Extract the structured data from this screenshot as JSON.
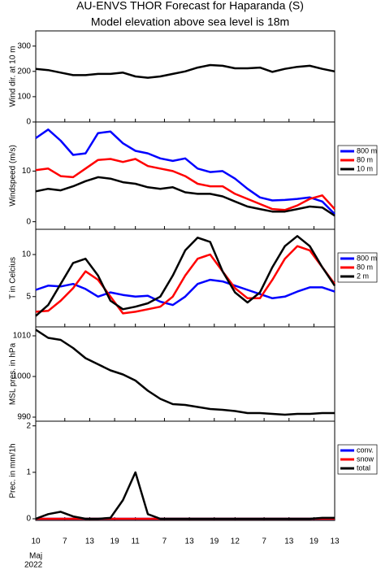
{
  "title": "AU-ENVS THOR Forecast for Haparanda (S)",
  "subtitle": "Model elevation above sea level is   18m",
  "chart_data": [
    {
      "type": "line",
      "ylabel": "Wind dir. at 10 m",
      "ylim": [
        0,
        360
      ],
      "yticks": [
        0,
        100,
        200,
        300
      ],
      "xlim": [
        0,
        72
      ],
      "x": [
        0,
        3,
        6,
        9,
        12,
        15,
        18,
        21,
        24,
        27,
        30,
        33,
        36,
        39,
        42,
        45,
        48,
        51,
        54,
        57,
        60,
        63,
        66,
        69,
        72
      ],
      "series": [
        {
          "color": "#000000",
          "values": [
            210,
            205,
            195,
            185,
            185,
            190,
            190,
            195,
            180,
            175,
            180,
            190,
            200,
            215,
            225,
            222,
            212,
            212,
            215,
            198,
            210,
            218,
            222,
            210,
            200
          ]
        }
      ]
    },
    {
      "type": "line",
      "ylabel": "Windspeed (m/s)",
      "ylim": [
        -1.5,
        19.7
      ],
      "yticks": [
        0,
        10
      ],
      "xlim": [
        0,
        72
      ],
      "legend": "right",
      "x": [
        0,
        3,
        6,
        9,
        12,
        15,
        18,
        21,
        24,
        27,
        30,
        33,
        36,
        39,
        42,
        45,
        48,
        51,
        54,
        57,
        60,
        63,
        66,
        69,
        72
      ],
      "series": [
        {
          "name": "800 m",
          "color": "#0000ff",
          "values": [
            16.5,
            18.2,
            16,
            13.2,
            13.5,
            17.5,
            17.8,
            15.5,
            14,
            13.5,
            12.5,
            12,
            12.5,
            10.5,
            9.8,
            10,
            8.5,
            6.5,
            4.8,
            4.2,
            4.3,
            4.5,
            4.8,
            4,
            1.5
          ]
        },
        {
          "name": "80 m",
          "color": "#ff0000",
          "values": [
            10.2,
            10.5,
            9,
            8.8,
            10.5,
            12.2,
            12.4,
            11.8,
            12.4,
            11,
            10.5,
            10,
            9,
            7.5,
            7,
            7,
            5.5,
            4.5,
            3.5,
            2.5,
            2.3,
            3.2,
            4.5,
            5.2,
            2.5
          ]
        },
        {
          "name": "10 m",
          "color": "#000000",
          "values": [
            6,
            6.5,
            6.2,
            7,
            8,
            8.8,
            8.5,
            7.8,
            7.5,
            6.8,
            6.5,
            6.8,
            5.8,
            5.5,
            5.5,
            5,
            4,
            3,
            2.5,
            2,
            2,
            2.5,
            3,
            2.8,
            1.2
          ]
        }
      ]
    },
    {
      "type": "line",
      "ylabel": "T in Celcius",
      "ylim": [
        1.4,
        13
      ],
      "yticks": [
        5,
        10
      ],
      "xlim": [
        0,
        72
      ],
      "legend": "right",
      "x": [
        0,
        3,
        6,
        9,
        12,
        15,
        18,
        21,
        24,
        27,
        30,
        33,
        36,
        39,
        42,
        45,
        48,
        51,
        54,
        57,
        60,
        63,
        66,
        69,
        72
      ],
      "series": [
        {
          "name": "800 m",
          "color": "#0000ff",
          "values": [
            5.8,
            6.3,
            6.2,
            6.5,
            5.9,
            5,
            5.5,
            5.2,
            5,
            5.1,
            4.4,
            4,
            5,
            6.5,
            7,
            6.8,
            6.3,
            5.8,
            5.3,
            4.8,
            5,
            5.6,
            6.1,
            6.1,
            5.6
          ]
        },
        {
          "name": "80 m",
          "color": "#ff0000",
          "values": [
            3.2,
            3.3,
            4.5,
            6,
            8,
            7,
            5,
            3,
            3.2,
            3.5,
            3.8,
            5,
            7.5,
            9.5,
            10,
            8,
            6,
            4.8,
            4.8,
            7,
            9.5,
            11,
            10.5,
            8.5,
            6.5
          ]
        },
        {
          "name": "2 m",
          "color": "#000000",
          "values": [
            2.7,
            4,
            6.5,
            9,
            9.5,
            7.5,
            4.5,
            3.5,
            3.8,
            4.2,
            5,
            7.5,
            10.5,
            12,
            11.5,
            8,
            5.5,
            4.3,
            5.5,
            8.5,
            11,
            12.2,
            11,
            8.5,
            6.3
          ]
        }
      ]
    },
    {
      "type": "line",
      "ylabel": "MSL pres. in hPa",
      "ylim": [
        989,
        1012.2
      ],
      "yticks": [
        990,
        1000,
        1010
      ],
      "xlim": [
        0,
        72
      ],
      "x": [
        0,
        3,
        6,
        9,
        12,
        15,
        18,
        21,
        24,
        27,
        30,
        33,
        36,
        39,
        42,
        45,
        48,
        51,
        54,
        57,
        60,
        63,
        66,
        69,
        72
      ],
      "series": [
        {
          "color": "#000000",
          "values": [
            1011.5,
            1009.5,
            1009,
            1007,
            1004.5,
            1003,
            1001.5,
            1000.5,
            999,
            996.5,
            994.5,
            993.2,
            993,
            992.5,
            992,
            991.8,
            991.5,
            991,
            991,
            990.8,
            990.6,
            990.8,
            990.8,
            991,
            991
          ]
        }
      ]
    },
    {
      "type": "line",
      "ylabel": "Prec. in mm/1h",
      "ylim": [
        -0.035,
        2.1
      ],
      "yticks": [
        0,
        1,
        2
      ],
      "xlim": [
        0,
        72
      ],
      "legend": "right",
      "x": [
        0,
        3,
        6,
        9,
        12,
        15,
        18,
        21,
        24,
        27,
        30,
        33,
        36,
        39,
        42,
        45,
        48,
        51,
        54,
        57,
        60,
        63,
        66,
        69,
        72
      ],
      "xticks": [
        {
          "value": 0,
          "label": "10"
        },
        {
          "value": 7,
          "label": "7"
        },
        {
          "value": 13,
          "label": "13"
        },
        {
          "value": 19,
          "label": "19"
        },
        {
          "value": 24,
          "label": "11"
        },
        {
          "value": 31,
          "label": "7"
        },
        {
          "value": 37,
          "label": "13"
        },
        {
          "value": 43,
          "label": "19"
        },
        {
          "value": 48,
          "label": "12"
        },
        {
          "value": 55,
          "label": "7"
        },
        {
          "value": 61,
          "label": "13"
        },
        {
          "value": 67,
          "label": "19"
        },
        {
          "value": 72,
          "label": "13"
        }
      ],
      "xlabel": "Maj",
      "xlabel2": "2022",
      "series": [
        {
          "name": "conv.",
          "color": "#0000ff",
          "values": [
            0,
            0,
            0,
            0,
            0,
            0,
            0,
            0,
            0,
            0,
            0,
            0,
            0,
            0,
            0,
            0,
            0,
            0,
            0,
            0,
            0,
            0,
            0,
            0,
            0
          ]
        },
        {
          "name": "snow",
          "color": "#ff0000",
          "values": [
            0,
            0,
            0,
            0,
            0,
            0,
            0,
            0,
            0,
            0,
            0,
            0,
            0,
            0,
            0,
            0,
            0,
            0,
            0,
            0,
            0,
            0,
            0,
            0,
            0
          ]
        },
        {
          "name": "total",
          "color": "#000000",
          "values": [
            0,
            0.1,
            0.15,
            0.05,
            0,
            0,
            0.02,
            0.4,
            1.0,
            0.1,
            0,
            0,
            0,
            0,
            0,
            0,
            0,
            0,
            0,
            0,
            0,
            0,
            0,
            0.02,
            0.02
          ]
        }
      ]
    }
  ]
}
